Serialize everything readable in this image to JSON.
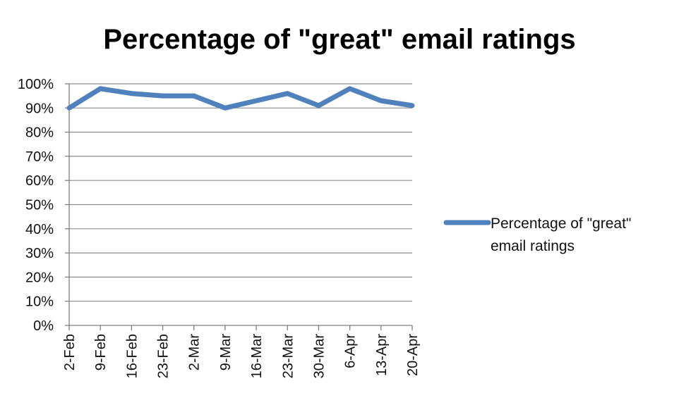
{
  "chart_data": {
    "type": "line",
    "title": "Percentage of \"great\" email ratings",
    "xlabel": "",
    "ylabel": "",
    "categories": [
      "2-Feb",
      "9-Feb",
      "16-Feb",
      "23-Feb",
      "2-Mar",
      "9-Mar",
      "16-Mar",
      "23-Mar",
      "30-Mar",
      "6-Apr",
      "13-Apr",
      "20-Apr"
    ],
    "yticks": [
      "0%",
      "10%",
      "20%",
      "30%",
      "40%",
      "50%",
      "60%",
      "70%",
      "80%",
      "90%",
      "100%"
    ],
    "ylim": [
      0,
      100
    ],
    "grid": true,
    "legend_position": "right",
    "series": [
      {
        "name": "Percentage of \"great\" email ratings",
        "legend_lines": [
          "Percentage of \"great\"",
          "email ratings"
        ],
        "color": "#4f81bd",
        "values": [
          90,
          98,
          96,
          95,
          95,
          90,
          93,
          96,
          91,
          98,
          93,
          91
        ]
      }
    ]
  }
}
